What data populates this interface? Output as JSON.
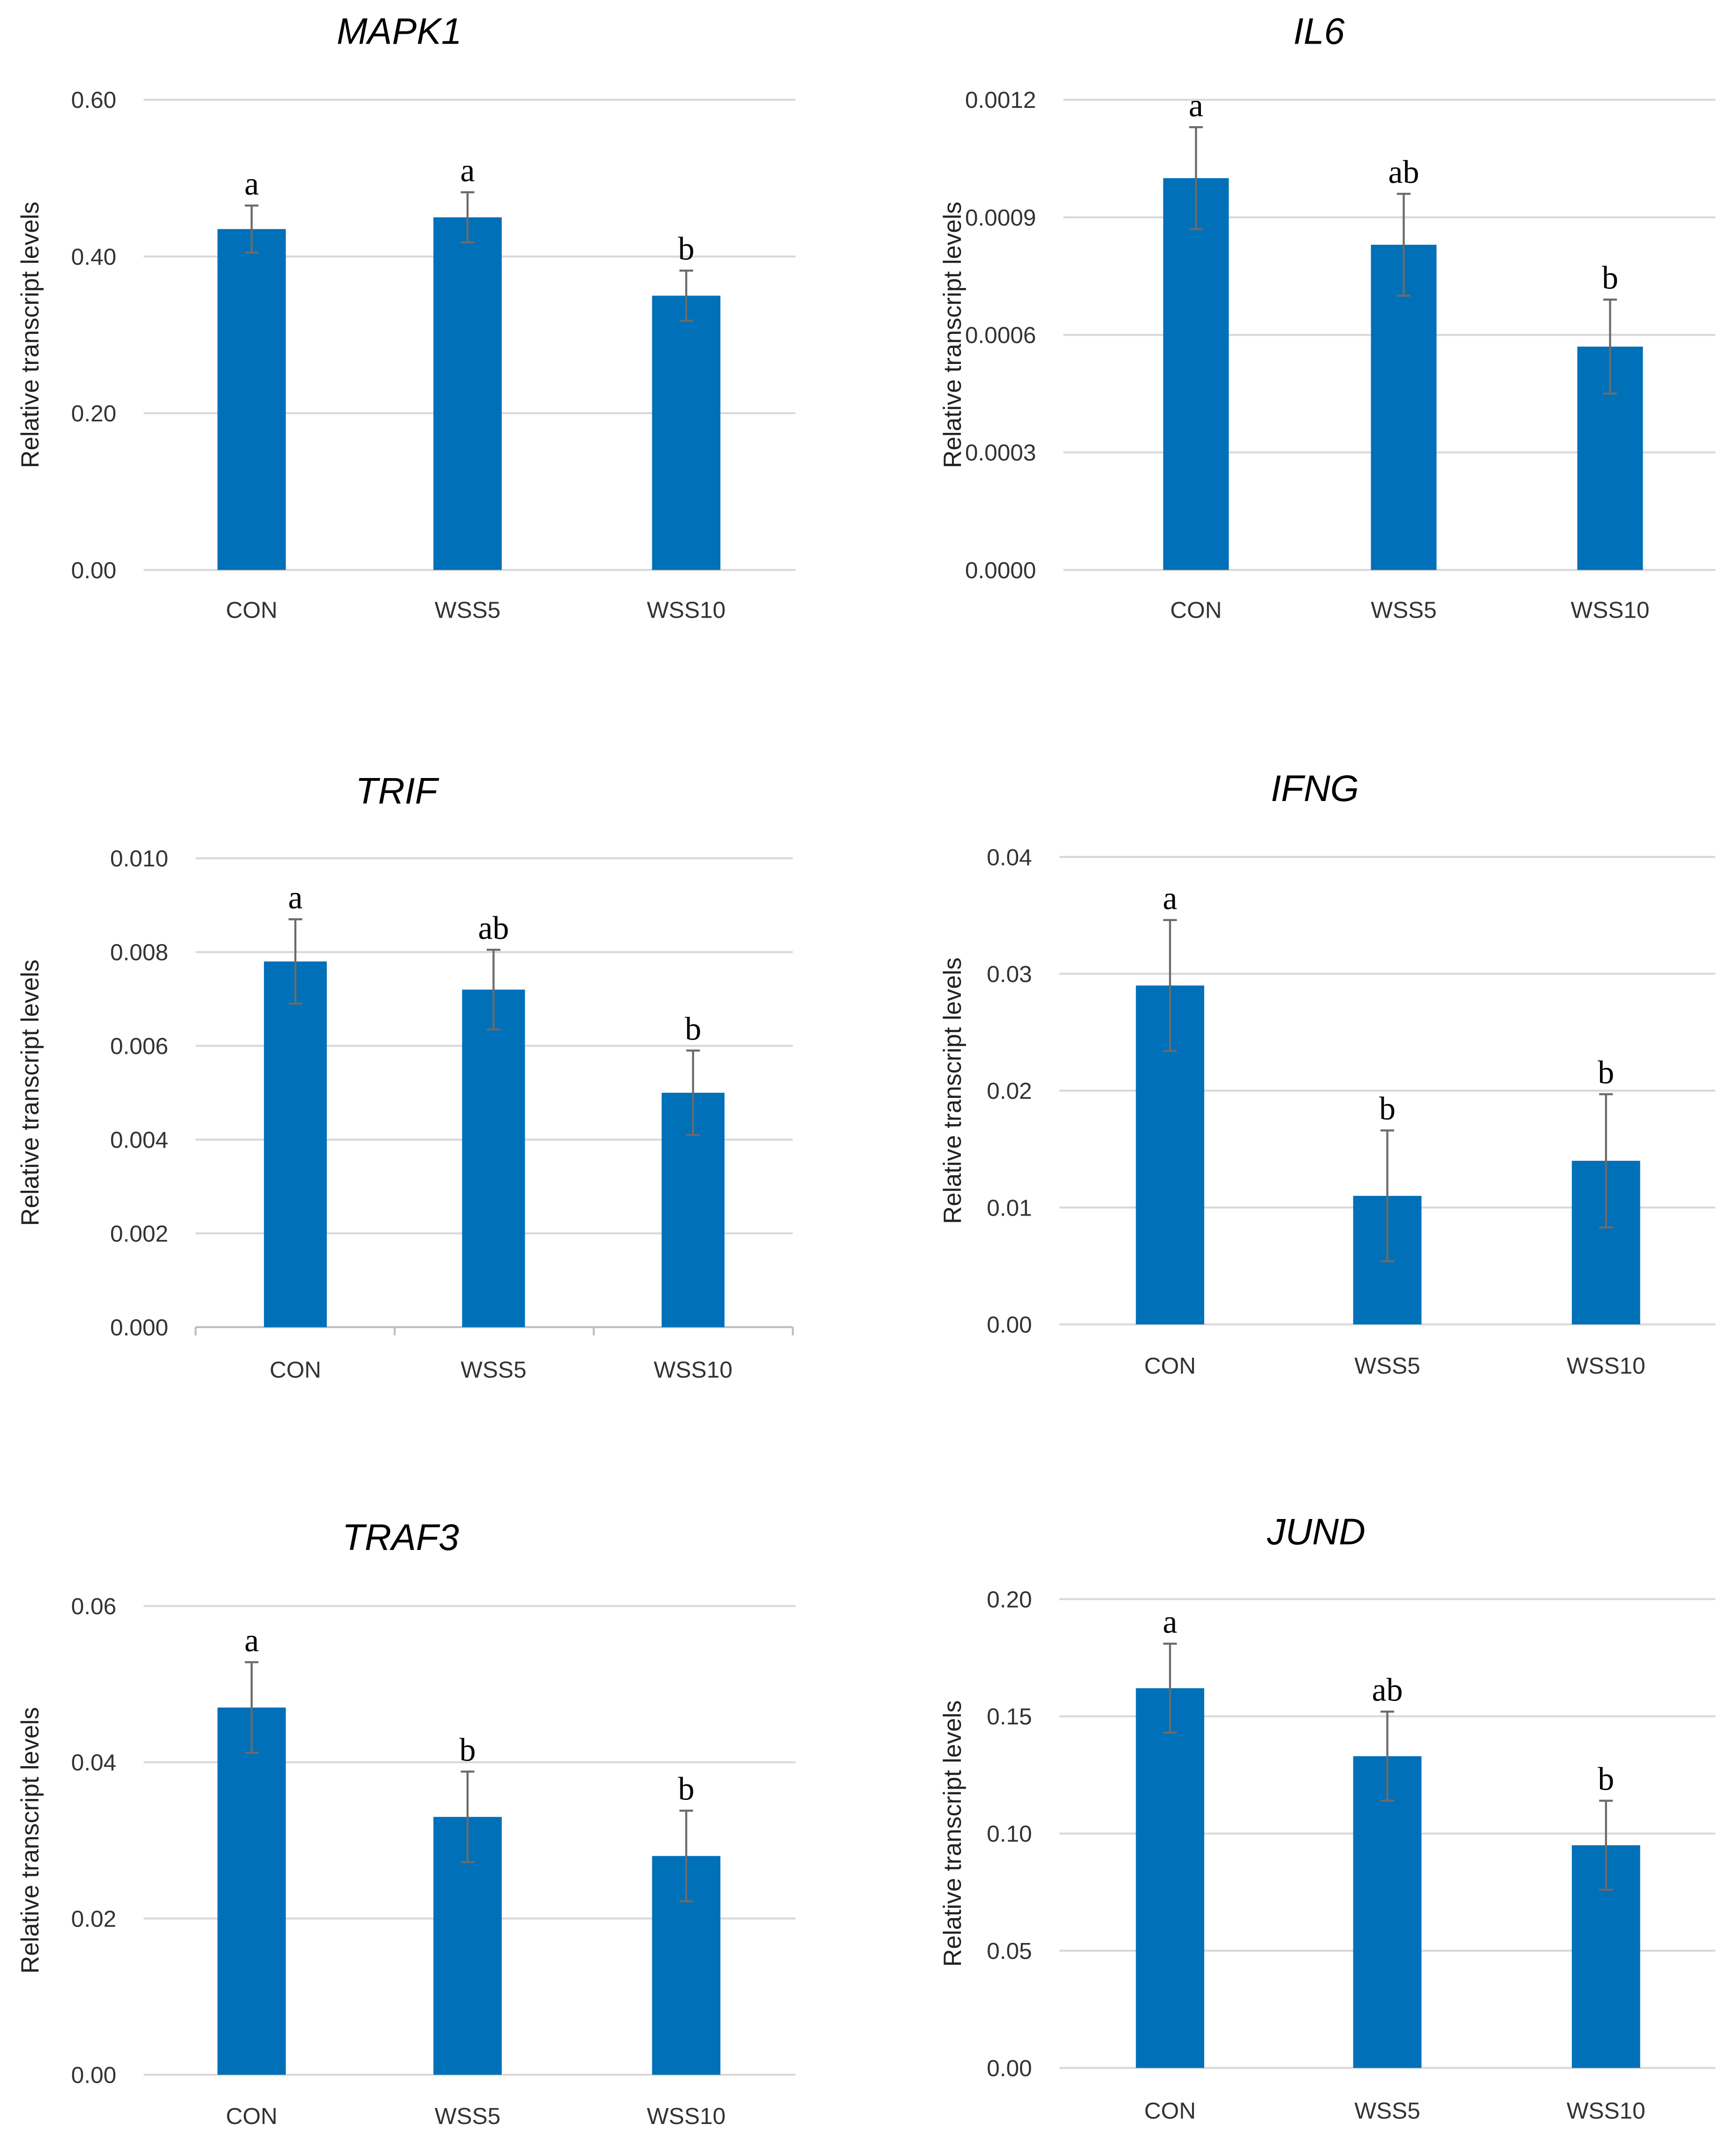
{
  "chart_data": [
    {
      "type": "bar",
      "title": "MAPK1",
      "ylabel": "Relative transcript levels",
      "categories": [
        "CON",
        "WSS5",
        "WSS10"
      ],
      "values": [
        0.435,
        0.45,
        0.35
      ],
      "errors": [
        0.03,
        0.032,
        0.032
      ],
      "significance": [
        "a",
        "a",
        "b"
      ],
      "ylim": [
        0,
        0.6
      ],
      "yticks": [
        "0.00",
        "0.20",
        "0.40",
        "0.60"
      ],
      "grid": true,
      "bar_color": "#0070b8"
    },
    {
      "type": "bar",
      "title": "IL6",
      "ylabel": "Relative transcript levels",
      "categories": [
        "CON",
        "WSS5",
        "WSS10"
      ],
      "values": [
        0.001,
        0.00083,
        0.00057
      ],
      "errors": [
        0.00013,
        0.00013,
        0.00012
      ],
      "significance": [
        "a",
        "ab",
        "b"
      ],
      "ylim": [
        0,
        0.0012
      ],
      "yticks": [
        "0.0000",
        "0.0003",
        "0.0006",
        "0.0009",
        "0.0012"
      ],
      "grid": true,
      "bar_color": "#0070b8"
    },
    {
      "type": "bar",
      "title": "TRIF",
      "ylabel": "Relative transcript levels",
      "categories": [
        "CON",
        "WSS5",
        "WSS10"
      ],
      "values": [
        0.0078,
        0.0072,
        0.005
      ],
      "errors": [
        0.0009,
        0.00085,
        0.0009
      ],
      "significance": [
        "a",
        "ab",
        "b"
      ],
      "ylim": [
        0,
        0.01
      ],
      "yticks": [
        "0.000",
        "0.002",
        "0.004",
        "0.006",
        "0.008",
        "0.010"
      ],
      "grid": true,
      "bar_color": "#0070b8"
    },
    {
      "type": "bar",
      "title": "IFNG",
      "ylabel": "Relative transcript levels",
      "categories": [
        "CON",
        "WSS5",
        "WSS10"
      ],
      "values": [
        0.029,
        0.011,
        0.014
      ],
      "errors": [
        0.0056,
        0.0056,
        0.0057
      ],
      "significance": [
        "a",
        "b",
        "b"
      ],
      "ylim": [
        0,
        0.04
      ],
      "yticks": [
        "0.00",
        "0.01",
        "0.02",
        "0.03",
        "0.04"
      ],
      "grid": true,
      "bar_color": "#0070b8"
    },
    {
      "type": "bar",
      "title": "TRAF3",
      "ylabel": "Relative transcript levels",
      "categories": [
        "CON",
        "WSS5",
        "WSS10"
      ],
      "values": [
        0.047,
        0.033,
        0.028
      ],
      "errors": [
        0.0058,
        0.0058,
        0.0058
      ],
      "significance": [
        "a",
        "b",
        "b"
      ],
      "ylim": [
        0,
        0.06
      ],
      "yticks": [
        "0.00",
        "0.02",
        "0.04",
        "0.06"
      ],
      "grid": true,
      "bar_color": "#0070b8"
    },
    {
      "type": "bar",
      "title": "JUND",
      "ylabel": "Relative transcript levels",
      "categories": [
        "CON",
        "WSS5",
        "WSS10"
      ],
      "values": [
        0.162,
        0.133,
        0.095
      ],
      "errors": [
        0.019,
        0.019,
        0.019
      ],
      "significance": [
        "a",
        "ab",
        "b"
      ],
      "ylim": [
        0,
        0.2
      ],
      "yticks": [
        "0.00",
        "0.05",
        "0.10",
        "0.15",
        "0.20"
      ],
      "grid": true,
      "bar_color": "#0070b8"
    }
  ]
}
